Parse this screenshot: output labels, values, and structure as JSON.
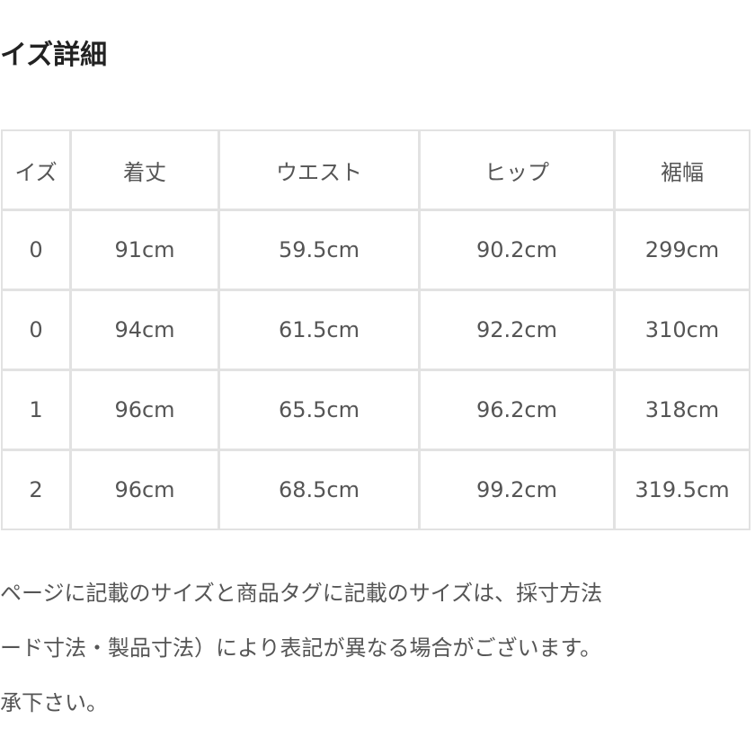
{
  "title": "イズ詳細",
  "table": {
    "headers": [
      "イズ",
      "着丈",
      "ウエスト",
      "ヒップ",
      "裾幅"
    ],
    "rows": [
      [
        "0",
        "91cm",
        "59.5cm",
        "90.2cm",
        "299cm"
      ],
      [
        "0",
        "94cm",
        "61.5cm",
        "92.2cm",
        "310cm"
      ],
      [
        "1",
        "96cm",
        "65.5cm",
        "96.2cm",
        "318cm"
      ],
      [
        "2",
        "96cm",
        "68.5cm",
        "99.2cm",
        "319.5cm"
      ]
    ]
  },
  "notes": [
    "ページに記載のサイズと商品タグに記載のサイズは、採寸方法",
    "ード寸法・製品寸法）により表記が異なる場合がございます。",
    "承下さい。"
  ]
}
